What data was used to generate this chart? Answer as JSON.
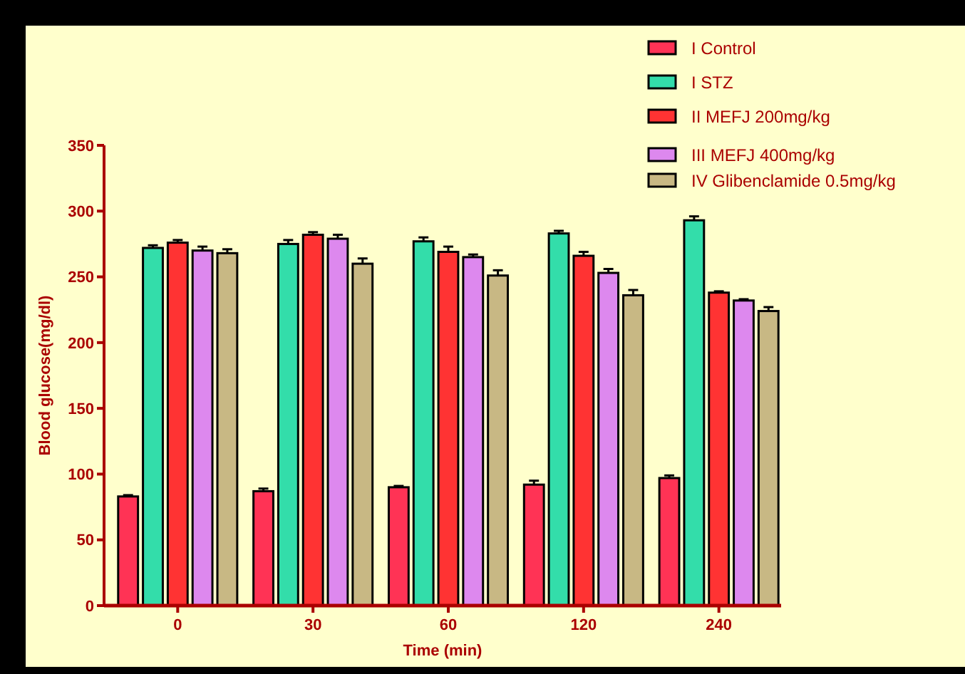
{
  "chart_data": {
    "type": "bar",
    "xlabel": "Time (min)",
    "ylabel": "Blood glucose(mg/dl)",
    "categories": [
      "0",
      "30",
      "60",
      "120",
      "240"
    ],
    "ylim": [
      0,
      350
    ],
    "yticks": [
      0,
      50,
      100,
      150,
      200,
      250,
      300,
      350
    ],
    "grid": false,
    "legend": "top right",
    "series": [
      {
        "name": "I Control",
        "color": "#ff3355",
        "values": [
          83,
          87,
          90,
          92,
          97
        ],
        "errors": [
          1,
          2,
          1,
          3,
          2
        ]
      },
      {
        "name": "I STZ",
        "color": "#33ddaa",
        "values": [
          272,
          275,
          277,
          283,
          293
        ],
        "errors": [
          2,
          3,
          3,
          2,
          3
        ]
      },
      {
        "name": "II MEFJ 200mg/kg",
        "color": "#ff3333",
        "values": [
          276,
          282,
          269,
          266,
          238
        ],
        "errors": [
          2,
          2,
          4,
          3,
          1
        ]
      },
      {
        "name": "III MEFJ 400mg/kg",
        "color": "#dd88ee",
        "values": [
          270,
          279,
          265,
          253,
          232
        ],
        "errors": [
          3,
          3,
          2,
          3,
          1
        ]
      },
      {
        "name": "IV Glibenclamide 0.5mg/kg",
        "color": "#c8b884",
        "values": [
          268,
          260,
          251,
          236,
          224
        ],
        "errors": [
          3,
          4,
          4,
          4,
          3
        ]
      }
    ]
  }
}
